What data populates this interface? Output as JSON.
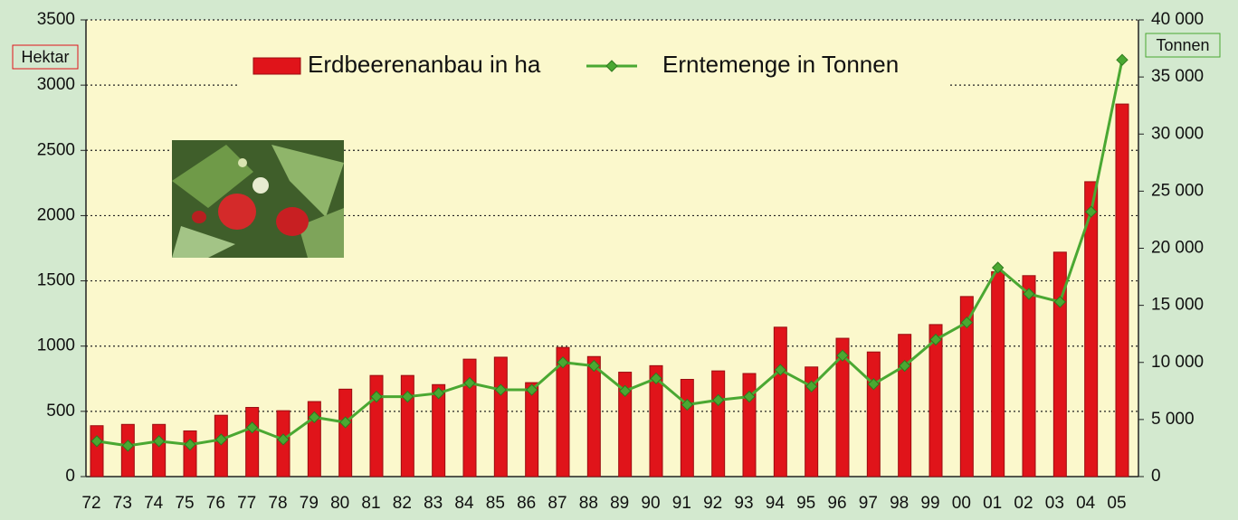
{
  "chart_data": {
    "type": "bar_line",
    "categories": [
      "72",
      "73",
      "74",
      "75",
      "76",
      "77",
      "78",
      "79",
      "80",
      "81",
      "82",
      "83",
      "84",
      "85",
      "86",
      "87",
      "88",
      "89",
      "90",
      "91",
      "92",
      "93",
      "94",
      "95",
      "96",
      "97",
      "98",
      "99",
      "00",
      "01",
      "02",
      "03",
      "04",
      "05"
    ],
    "series": [
      {
        "name": "Erdbeerenanbau in ha",
        "type": "bar",
        "color": "#e0141a",
        "values": [
          390,
          400,
          400,
          350,
          470,
          530,
          505,
          575,
          670,
          775,
          775,
          705,
          900,
          915,
          720,
          990,
          920,
          800,
          850,
          745,
          810,
          790,
          1145,
          840,
          1060,
          955,
          1090,
          1165,
          1380,
          1570,
          1540,
          1720,
          2260,
          2855
        ]
      },
      {
        "name": "Erntemenge in Tonnen",
        "type": "line",
        "axis": "y2",
        "color": "#4aa832",
        "values": [
          3100,
          2700,
          3100,
          2800,
          3250,
          4300,
          3250,
          5200,
          4750,
          7000,
          7000,
          7300,
          8200,
          7600,
          7600,
          10000,
          9700,
          7500,
          8600,
          6300,
          6700,
          7000,
          9350,
          7900,
          10600,
          8100,
          9700,
          12000,
          13500,
          18300,
          16000,
          15300,
          23200,
          36500
        ]
      }
    ],
    "ylabel": "Hektar",
    "y2label": "Tonnen",
    "ylim": [
      0,
      3500
    ],
    "yticks": [
      0,
      500,
      1000,
      1500,
      2000,
      2500,
      3000,
      3500
    ],
    "y2lim": [
      0,
      40000
    ],
    "y2ticks": [
      0,
      {
        "value": 5000,
        "label": "5 000"
      },
      {
        "value": 10000,
        "label": "10 000"
      },
      {
        "value": 15000,
        "label": "15 000"
      },
      {
        "value": 20000,
        "label": "20 000"
      },
      {
        "value": 25000,
        "label": "25 000"
      },
      {
        "value": 30000,
        "label": "30 000"
      },
      {
        "value": 35000,
        "label": "35 000"
      },
      {
        "value": 40000,
        "label": "40 000"
      }
    ],
    "grid": true
  }
}
